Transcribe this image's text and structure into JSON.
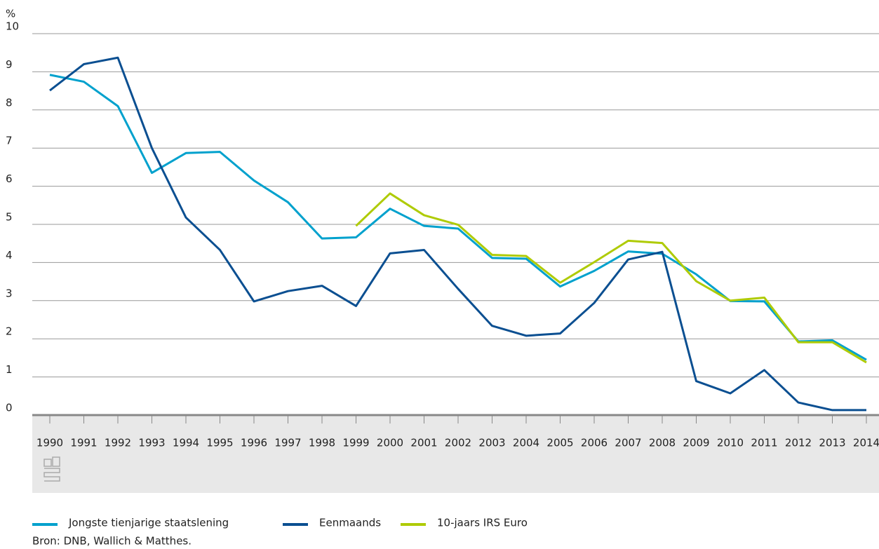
{
  "chart_data": {
    "type": "line",
    "y_label": "%",
    "categories": [
      "1990",
      "1991",
      "1992",
      "1993",
      "1994",
      "1995",
      "1996",
      "1997",
      "1998",
      "1999",
      "2000",
      "2001",
      "2002",
      "2003",
      "2004",
      "2005",
      "2006",
      "2007",
      "2008",
      "2009",
      "2010",
      "2011",
      "2012",
      "2013",
      "2014"
    ],
    "series": [
      {
        "name": "Jongste tienjarige staatslening",
        "color": "#00a1cd",
        "values": [
          8.92,
          8.74,
          8.1,
          6.35,
          6.87,
          6.9,
          6.15,
          5.58,
          4.63,
          4.66,
          5.41,
          4.96,
          4.89,
          4.12,
          4.1,
          3.37,
          3.78,
          4.29,
          4.23,
          3.69,
          2.99,
          2.98,
          1.93,
          1.96,
          1.45
        ]
      },
      {
        "name": "Eenmaands",
        "color": "#0b4f91",
        "values": [
          8.51,
          9.2,
          9.37,
          7.0,
          5.18,
          4.33,
          2.98,
          3.25,
          3.39,
          2.86,
          4.24,
          4.33,
          3.31,
          2.34,
          2.08,
          2.14,
          2.94,
          4.08,
          4.28,
          0.89,
          0.57,
          1.18,
          0.33,
          0.13,
          0.13
        ]
      },
      {
        "name": "10-jaars IRS Euro",
        "color": "#afcb05",
        "values": [
          null,
          null,
          null,
          null,
          null,
          null,
          null,
          null,
          null,
          4.96,
          5.81,
          5.24,
          4.99,
          4.2,
          4.17,
          3.47,
          4.01,
          4.57,
          4.51,
          3.51,
          3.0,
          3.08,
          1.91,
          1.91,
          1.38
        ]
      }
    ],
    "ylim": [
      0,
      10
    ],
    "yticks": [
      0,
      1,
      2,
      3,
      4,
      5,
      6,
      7,
      8,
      9,
      10
    ],
    "grid": true,
    "source": "Bron: DNB, Wallich & Matthes."
  }
}
